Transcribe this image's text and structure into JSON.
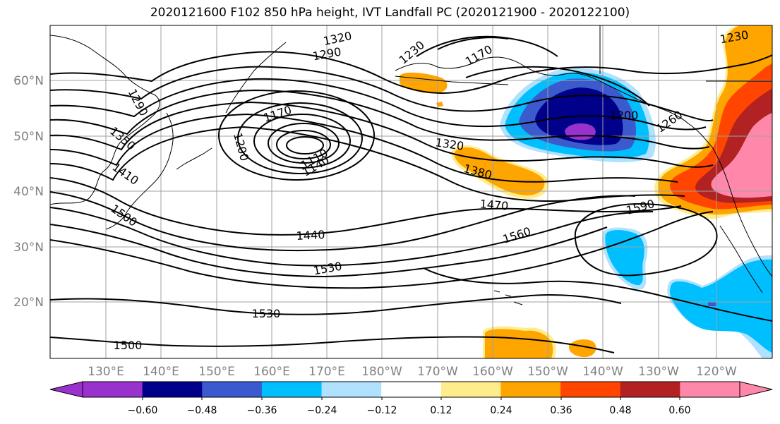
{
  "title": "2020121600 F102 850 hPa height, IVT Landfall PC (2020121900 - 2020122100)",
  "map": {
    "lon_labels": [
      "130°E",
      "140°E",
      "150°E",
      "160°E",
      "170°E",
      "180°W",
      "170°W",
      "160°W",
      "150°W",
      "140°W",
      "130°W",
      "120°W"
    ],
    "lat_labels": [
      "60°N",
      "50°N",
      "40°N",
      "30°N",
      "20°N"
    ],
    "contour_labels": [
      "1320",
      "1290",
      "1230",
      "1170",
      "1290",
      "1350",
      "1410",
      "1500",
      "1170",
      "1200",
      "1140",
      "1110",
      "1320",
      "1380",
      "1470",
      "1440",
      "1530",
      "1560",
      "1590",
      "1530",
      "1500",
      "1200",
      "1260",
      "1230"
    ]
  },
  "colorbar": {
    "colors": [
      "#9932cc",
      "#00008b",
      "#3a5acd",
      "#00bfff",
      "#b0e2ff",
      "#ffffff",
      "#ffec8b",
      "#ffa500",
      "#ff4500",
      "#b22222",
      "#ff88aa"
    ],
    "tick_labels": [
      "−0.60",
      "−0.48",
      "−0.36",
      "−0.24",
      "−0.12",
      "0.12",
      "0.24",
      "0.36",
      "0.48",
      "0.60"
    ]
  },
  "colors": {
    "contour": "#000000",
    "grid": "#a0a0a0",
    "coast": "#000000"
  }
}
